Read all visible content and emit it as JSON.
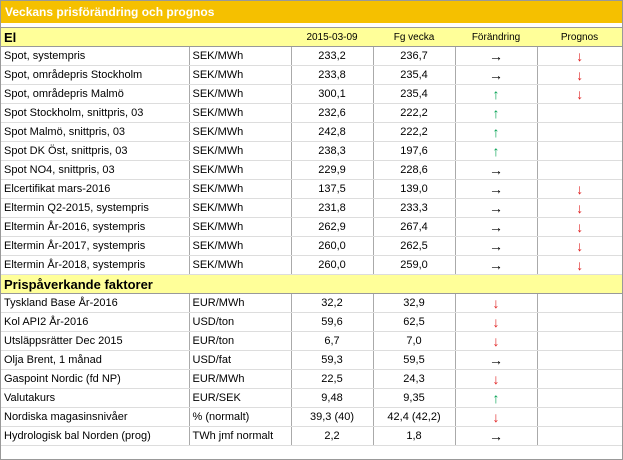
{
  "title": "Veckans prisförändring och prognos",
  "columns": [
    "2015-03-09",
    "Fg vecka",
    "Förändring",
    "Prognos"
  ],
  "sections": [
    {
      "name": "El",
      "rows": [
        [
          "Spot, systempris",
          "SEK/MWh",
          "233,2",
          "236,7",
          "→",
          "↓"
        ],
        [
          "Spot, områdepris Stockholm",
          "SEK/MWh",
          "233,8",
          "235,4",
          "→",
          "↓"
        ],
        [
          "Spot, områdepris Malmö",
          "SEK/MWh",
          "300,1",
          "235,4",
          "↑",
          "↓"
        ],
        [
          "Spot Stockholm, snittpris, 03",
          "SEK/MWh",
          "232,6",
          "222,2",
          "↑",
          null
        ],
        [
          "Spot Malmö, snittpris, 03",
          "SEK/MWh",
          "242,8",
          "222,2",
          "↑",
          null
        ],
        [
          "Spot DK Öst, snittpris, 03",
          "SEK/MWh",
          "238,3",
          "197,6",
          "↑",
          null
        ],
        [
          "Spot NO4, snittpris, 03",
          "SEK/MWh",
          "229,9",
          "228,6",
          "→",
          null
        ],
        [
          "Elcertifikat mars-2016",
          "SEK/MWh",
          "137,5",
          "139,0",
          "→",
          "↓"
        ],
        [
          "Eltermin Q2-2015, systempris",
          "SEK/MWh",
          "231,8",
          "233,3",
          "→",
          "↓"
        ],
        [
          "Eltermin År-2016, systempris",
          "SEK/MWh",
          "262,9",
          "267,4",
          "→",
          "↓"
        ],
        [
          "Eltermin År-2017, systempris",
          "SEK/MWh",
          "260,0",
          "262,5",
          "→",
          "↓"
        ],
        [
          "Eltermin År-2018, systempris",
          "SEK/MWh",
          "260,0",
          "259,0",
          "→",
          "↓"
        ]
      ]
    },
    {
      "name": "Prispåverkande faktorer",
      "rows": [
        [
          "Tyskland Base År-2016",
          "EUR/MWh",
          "32,2",
          "32,9",
          "↓",
          null
        ],
        [
          "Kol API2 År-2016",
          "USD/ton",
          "59,6",
          "62,5",
          "↓",
          null
        ],
        [
          "Utsläppsrätter Dec 2015",
          "EUR/ton",
          "6,7",
          "7,0",
          "↓",
          null
        ],
        [
          "Olja Brent, 1 månad",
          "USD/fat",
          "59,3",
          "59,5",
          "→",
          null
        ],
        [
          "Gaspoint Nordic (fd NP)",
          "EUR/MWh",
          "22,5",
          "24,3",
          "↓",
          null
        ],
        [
          "Valutakurs",
          "EUR/SEK",
          "9,48",
          "9,35",
          "↑",
          null
        ],
        [
          "Nordiska magasinsnivåer",
          "%  (normalt)",
          "39,3 (40)",
          "42,4 (42,2)",
          "↓",
          null
        ],
        [
          "Hydrologisk bal Norden (prog)",
          "TWh jmf normalt",
          "2,2",
          "1,8",
          "→",
          null
        ]
      ]
    }
  ]
}
